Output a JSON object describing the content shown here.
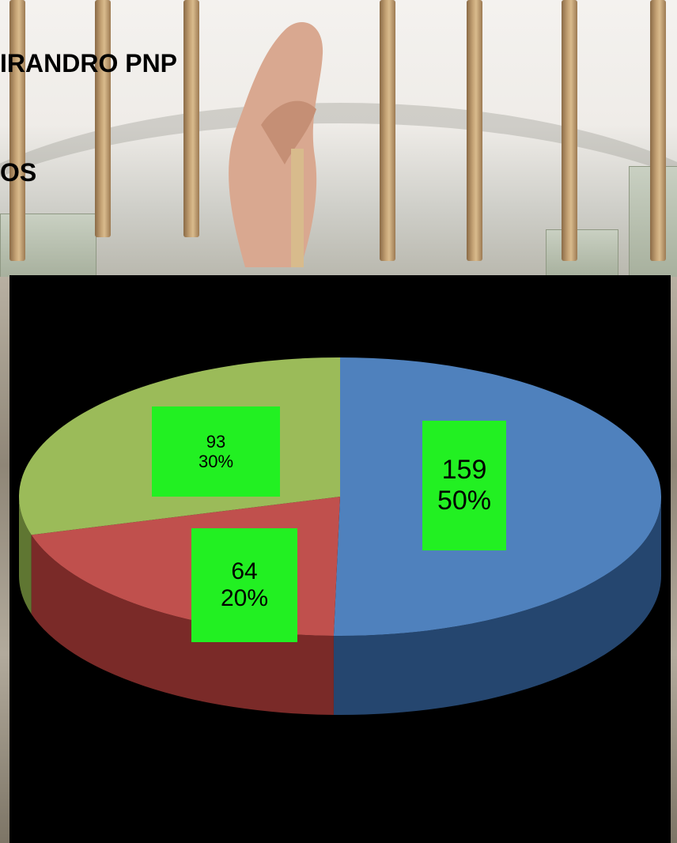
{
  "title_lines": [
    "IRANDRO PNP",
    "OS"
  ],
  "chart_data": {
    "type": "pie",
    "title": "",
    "slices": [
      {
        "value": 159,
        "label": "159",
        "percent": "50%",
        "color": "#4f81bd",
        "side_color": "#25466f"
      },
      {
        "value": 64,
        "label": "64",
        "percent": "20%",
        "color": "#c0504d",
        "side_color": "#7a2a28"
      },
      {
        "value": 93,
        "label": "93",
        "percent": "30%",
        "color": "#9bbb59",
        "side_color": "#5f7632"
      }
    ],
    "label_background": "#22f022",
    "chart_background": "#000000",
    "legend": "none"
  }
}
